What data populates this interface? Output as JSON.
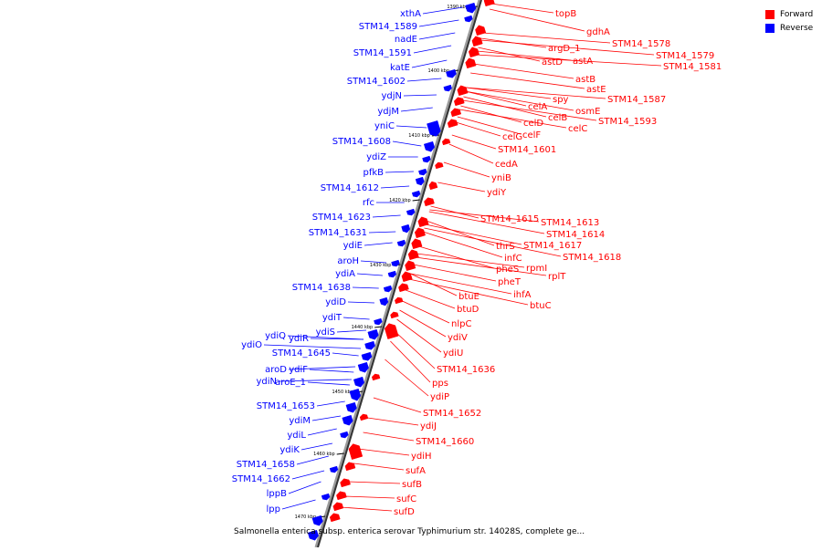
{
  "legend": {
    "forward": {
      "label": "Forward",
      "color": "#ff0000"
    },
    "reverse": {
      "label": "Reverse",
      "color": "#0000ff"
    }
  },
  "caption": "Salmonella enterica subsp. enterica serovar Typhimurium str. 14028S, complete ge...",
  "ticks": [
    {
      "label": "1390 kbp"
    },
    {
      "label": "1400 kbp"
    },
    {
      "label": "1410 kbp"
    },
    {
      "label": "1420 kbp"
    },
    {
      "label": "1430 kbp"
    },
    {
      "label": "1440 kbp"
    },
    {
      "label": "1450 kbp"
    },
    {
      "label": "1460 kbp"
    },
    {
      "label": "1470 kbp"
    }
  ],
  "reverse_genes": [
    {
      "label": "xthA"
    },
    {
      "label": "STM14_1589"
    },
    {
      "label": "nadE"
    },
    {
      "label": "STM14_1591"
    },
    {
      "label": "katE"
    },
    {
      "label": "STM14_1602"
    },
    {
      "label": "ydjN"
    },
    {
      "label": "ydjM"
    },
    {
      "label": "yniC"
    },
    {
      "label": "STM14_1608"
    },
    {
      "label": "ydiZ"
    },
    {
      "label": "pfkB"
    },
    {
      "label": "STM14_1612"
    },
    {
      "label": "rfc"
    },
    {
      "label": "STM14_1623"
    },
    {
      "label": "STM14_1631"
    },
    {
      "label": "ydiE"
    },
    {
      "label": "aroH"
    },
    {
      "label": "ydiA"
    },
    {
      "label": "STM14_1638"
    },
    {
      "label": "ydiD"
    },
    {
      "label": "ydiT"
    },
    {
      "label": "ydiS"
    },
    {
      "label": "ydiQ"
    },
    {
      "label": "ydiR"
    },
    {
      "label": "ydiO"
    },
    {
      "label": "STM14_1645"
    },
    {
      "label": "aroD"
    },
    {
      "label": "ydiF"
    },
    {
      "label": "ydiN"
    },
    {
      "label": "aroE_1"
    },
    {
      "label": "STM14_1653"
    },
    {
      "label": "ydiM"
    },
    {
      "label": "ydiL"
    },
    {
      "label": "ydiK"
    },
    {
      "label": "STM14_1658"
    },
    {
      "label": "STM14_1662"
    },
    {
      "label": "lppB"
    },
    {
      "label": "lpp"
    }
  ],
  "forward_genes": [
    {
      "label": "topB"
    },
    {
      "label": "gdhA"
    },
    {
      "label": "STM14_1578"
    },
    {
      "label": "argD_1"
    },
    {
      "label": "STM14_1579"
    },
    {
      "label": "astD"
    },
    {
      "label": "astA"
    },
    {
      "label": "STM14_1581"
    },
    {
      "label": "astB"
    },
    {
      "label": "astE"
    },
    {
      "label": "spy"
    },
    {
      "label": "STM14_1587"
    },
    {
      "label": "celA"
    },
    {
      "label": "osmE"
    },
    {
      "label": "celB"
    },
    {
      "label": "STM14_1593"
    },
    {
      "label": "celD"
    },
    {
      "label": "celC"
    },
    {
      "label": "celF"
    },
    {
      "label": "celG"
    },
    {
      "label": "STM14_1601"
    },
    {
      "label": "cedA"
    },
    {
      "label": "yniB"
    },
    {
      "label": "ydiY"
    },
    {
      "label": "STM14_1615"
    },
    {
      "label": "STM14_1613"
    },
    {
      "label": "STM14_1614"
    },
    {
      "label": "thrS"
    },
    {
      "label": "STM14_1617"
    },
    {
      "label": "infC"
    },
    {
      "label": "STM14_1618"
    },
    {
      "label": "pheS"
    },
    {
      "label": "rpmI"
    },
    {
      "label": "rplT"
    },
    {
      "label": "pheT"
    },
    {
      "label": "ihfA"
    },
    {
      "label": "btuE"
    },
    {
      "label": "btuC"
    },
    {
      "label": "btuD"
    },
    {
      "label": "nlpC"
    },
    {
      "label": "ydiV"
    },
    {
      "label": "ydiU"
    },
    {
      "label": "STM14_1636"
    },
    {
      "label": "pps"
    },
    {
      "label": "ydiP"
    },
    {
      "label": "STM14_1652"
    },
    {
      "label": "ydiJ"
    },
    {
      "label": "STM14_1660"
    },
    {
      "label": "ydiH"
    },
    {
      "label": "sufA"
    },
    {
      "label": "sufB"
    },
    {
      "label": "sufC"
    },
    {
      "label": "sufD"
    }
  ]
}
